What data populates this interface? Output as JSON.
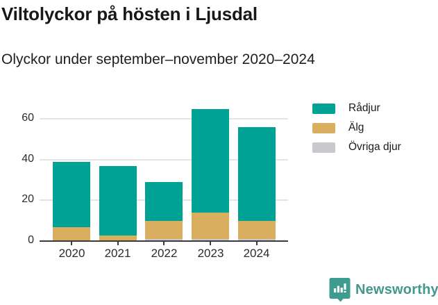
{
  "header": {
    "title": "Viltolyckor på hösten i Ljusdal",
    "subtitle": "Olyckor under september–november 2020–2024"
  },
  "chart_data": {
    "type": "bar",
    "stacked": true,
    "title": "Viltolyckor på hösten i Ljusdal",
    "subtitle": "Olyckor under september–november 2020–2024",
    "categories": [
      "2020",
      "2021",
      "2022",
      "2023",
      "2024"
    ],
    "series": [
      {
        "name": "Rådjur",
        "color": "#00a296",
        "values": [
          32,
          34,
          19,
          51,
          46
        ]
      },
      {
        "name": "Älg",
        "color": "#d9ae5e",
        "values": [
          7,
          3,
          9,
          13,
          9
        ]
      },
      {
        "name": "Övriga djur",
        "color": "#c9c8cc",
        "values": [
          0,
          0,
          1,
          1,
          1
        ]
      }
    ],
    "stack_bottom_to_top": [
      "Övriga djur",
      "Älg",
      "Rådjur"
    ],
    "totals": [
      39,
      37,
      29,
      65,
      56
    ],
    "xlabel": "",
    "ylabel": "",
    "yticks": [
      0,
      20,
      40,
      60
    ],
    "ylim": [
      0,
      70
    ],
    "grid": "horizontal",
    "legend_position": "top-right",
    "axis_color": "#3a3a3a",
    "gridline_color": "#e4e4e4"
  },
  "footer": {
    "brand": "Newsworthy",
    "brand_color": "#43988e",
    "logo_icon": "bar-chart-pin-icon"
  }
}
